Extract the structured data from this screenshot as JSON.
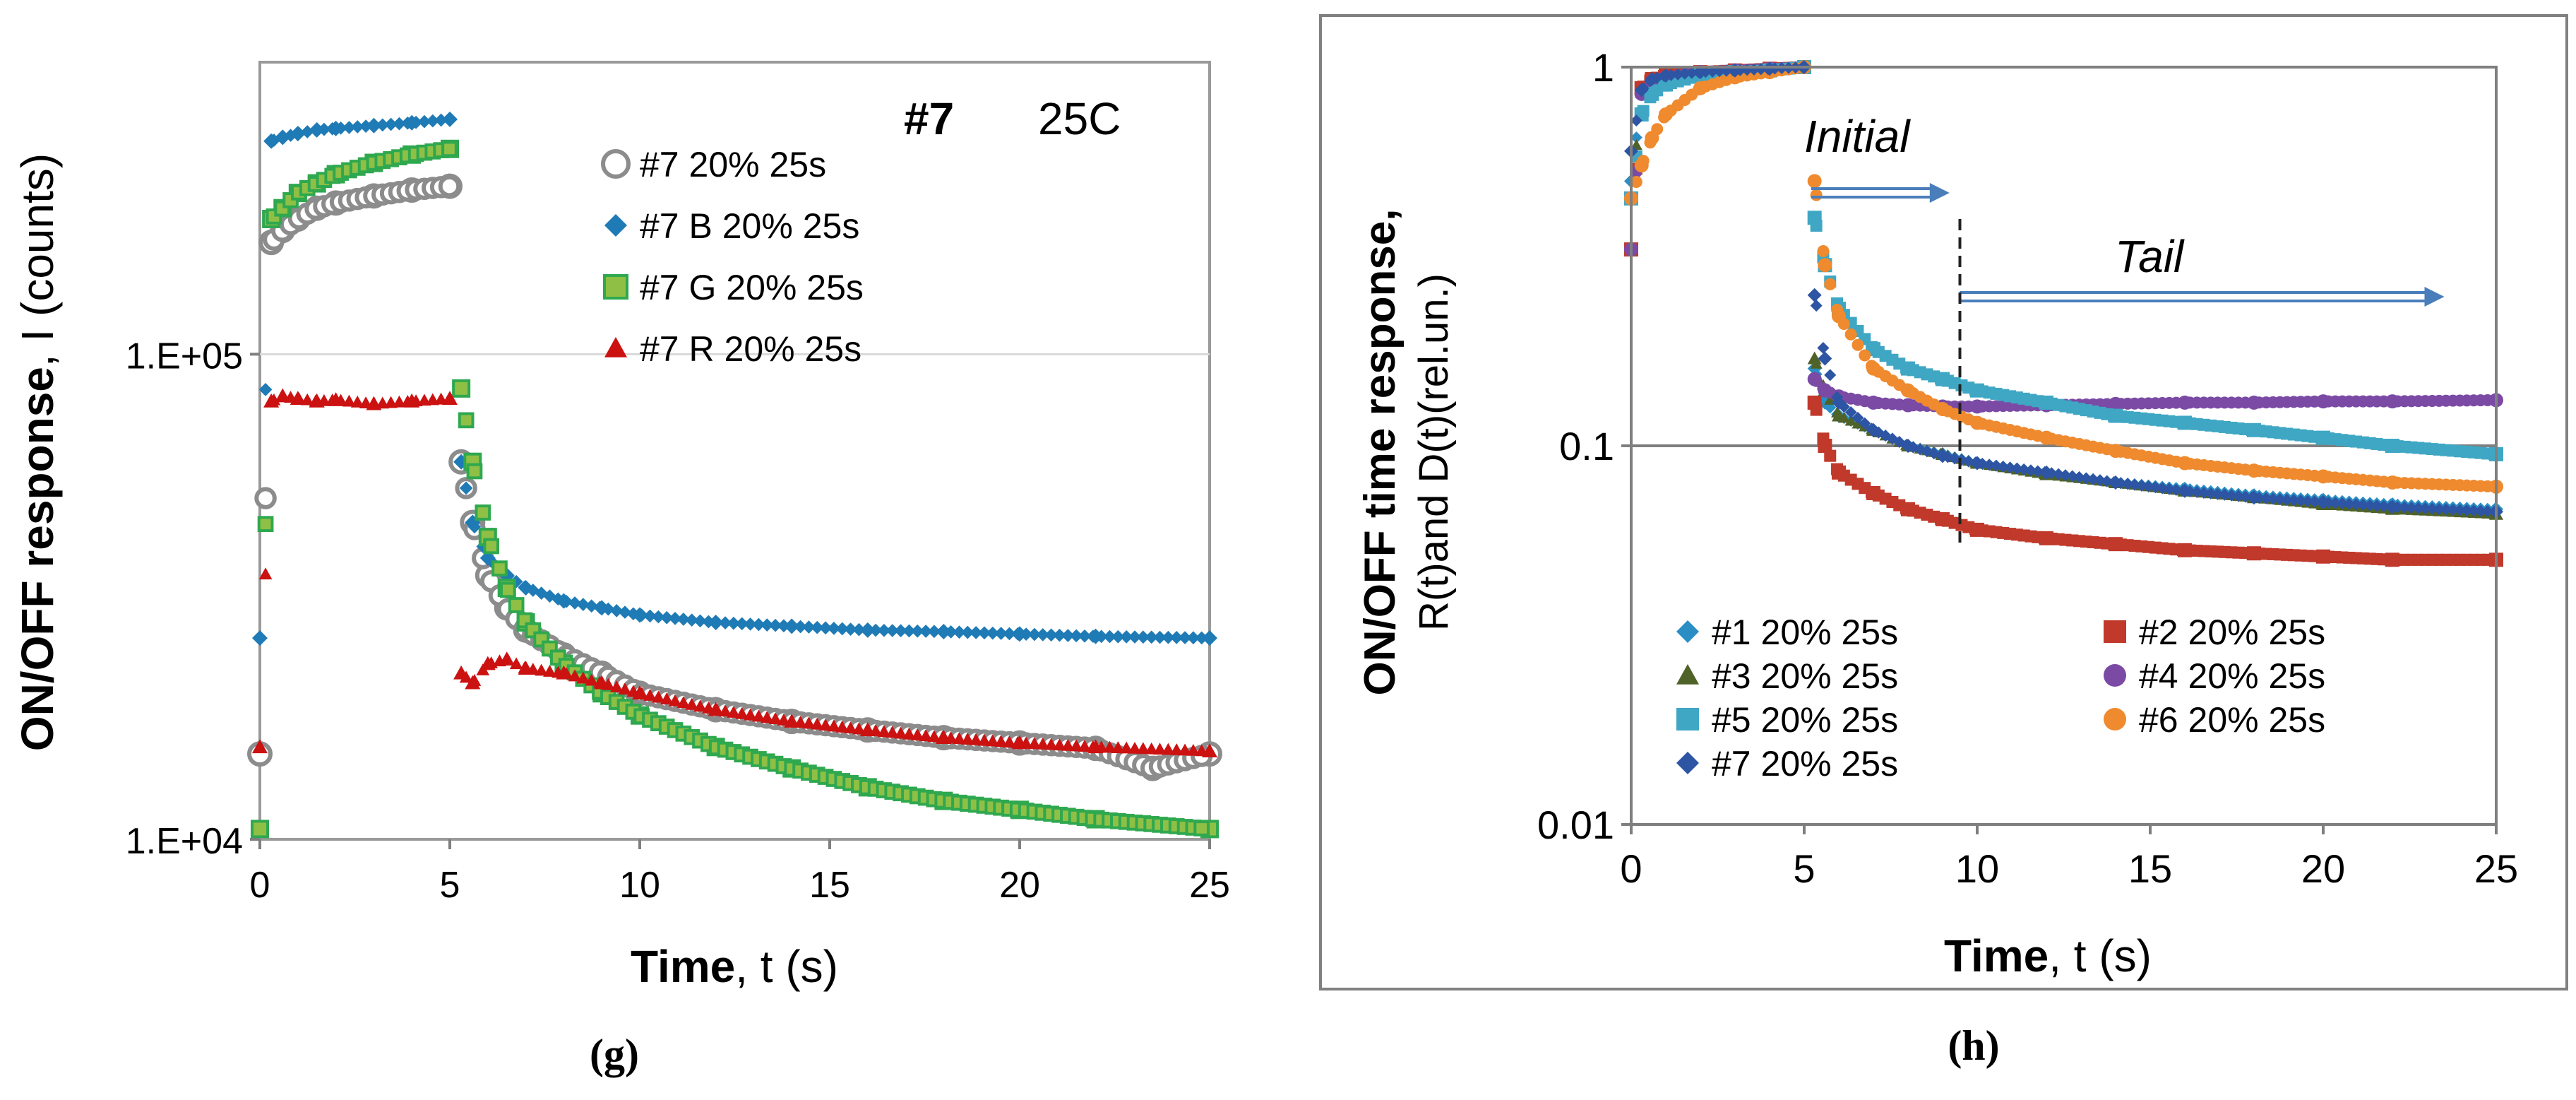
{
  "colors": {
    "gray": "#8c8c8c",
    "blue_b": "#1f7bb5",
    "green_g": "#8fc045",
    "green_edge": "#2fa84f",
    "red_r": "#cc1111",
    "s1": "#2a8ec4",
    "s2": "#c0392b",
    "s3": "#4f6228",
    "s4": "#7a4aa5",
    "s5": "#3fa7c4",
    "s6": "#ef8a2e",
    "s7": "#2d55a3",
    "arrow": "#4a7ebb",
    "gridline": "#bfbfbf",
    "axis": "#7f7f7f"
  },
  "panel_g": {
    "caption": "(g)",
    "annotation_id": "#7",
    "annotation_temp": "25C"
  },
  "panel_h": {
    "caption": "(h)",
    "label_initial": "Initial",
    "label_tail": "Tail",
    "ylabel_line1": "ON/OFF time response,",
    "ylabel_line2": "R(t)and D(t)(rel.un.)"
  },
  "chart_data": [
    {
      "type": "scatter",
      "panel": "g",
      "title": "",
      "xlabel_bold": "Time",
      "xlabel_rest": ", t (s)",
      "ylabel_bold": "ON/OFF response",
      "ylabel_rest": ", I (counts)",
      "xlim": [
        0,
        25
      ],
      "ylim": [
        10000,
        400000
      ],
      "yscale": "log",
      "xticks": [
        0,
        5,
        10,
        15,
        20,
        25
      ],
      "yticks": [
        {
          "value": 10000,
          "label": "1.E+04"
        },
        {
          "value": 100000,
          "label": "1.E+05"
        }
      ],
      "legend_position": "top-center",
      "series": [
        {
          "name": "#7 20% 25s",
          "marker": "circle-open",
          "color_key": "gray",
          "x": [
            0,
            0.3,
            0.6,
            1,
            1.5,
            2,
            3,
            4,
            5,
            5.3,
            5.6,
            6,
            6.5,
            7,
            8,
            9,
            10,
            12,
            14,
            16,
            18,
            20,
            22,
            23.5,
            25
          ],
          "y": [
            15000,
            170000,
            180000,
            190000,
            200000,
            205000,
            212000,
            218000,
            222000,
            60000,
            45000,
            35000,
            30000,
            27000,
            24000,
            22000,
            20000,
            18500,
            17500,
            16800,
            16200,
            15800,
            15400,
            14000,
            15000
          ]
        },
        {
          "name": "#7 B 20% 25s",
          "marker": "diamond",
          "color_key": "blue_b",
          "x": [
            0,
            0.3,
            0.6,
            1,
            1.5,
            2,
            3,
            4,
            5,
            5.3,
            5.6,
            6,
            6.5,
            7,
            8,
            9,
            10,
            12,
            14,
            16,
            18,
            20,
            22,
            25
          ],
          "y": [
            26000,
            275000,
            280000,
            285000,
            290000,
            292000,
            296000,
            300000,
            305000,
            60000,
            45000,
            38000,
            35000,
            33000,
            31000,
            30000,
            29000,
            28000,
            27500,
            27000,
            26800,
            26500,
            26200,
            26000
          ]
        },
        {
          "name": "#7 G 20% 25s",
          "marker": "square",
          "color_key": "green_g",
          "x": [
            0,
            0.3,
            0.6,
            1,
            1.5,
            2,
            3,
            4,
            5,
            5.3,
            5.6,
            6,
            6.5,
            7,
            8,
            9,
            10,
            12,
            14,
            16,
            18,
            20,
            22,
            25
          ],
          "y": [
            10500,
            190000,
            200000,
            215000,
            225000,
            235000,
            248000,
            258000,
            265000,
            85000,
            60000,
            42000,
            33000,
            28000,
            23000,
            20000,
            18000,
            15500,
            14000,
            12800,
            12000,
            11500,
            11000,
            10500
          ]
        },
        {
          "name": "#7 R 20% 25s",
          "marker": "triangle",
          "color_key": "red_r",
          "x": [
            0,
            0.3,
            0.6,
            1,
            1.5,
            2,
            3,
            4,
            5,
            5.3,
            5.6,
            6,
            6.5,
            7,
            8,
            9,
            10,
            12,
            14,
            16,
            18,
            20,
            22,
            25
          ],
          "y": [
            15500,
            80000,
            82000,
            81000,
            80000,
            80500,
            79000,
            80000,
            81000,
            22000,
            21000,
            23000,
            23500,
            22500,
            22000,
            21000,
            20000,
            18500,
            17500,
            16800,
            16200,
            15800,
            15500,
            15200
          ]
        }
      ]
    },
    {
      "type": "scatter",
      "panel": "h",
      "title": "",
      "xlabel_bold": "Time",
      "xlabel_rest": ", t (s)",
      "ylabel": "ON/OFF time response, R(t)and D(t)(rel.un.)",
      "xlim": [
        0,
        25
      ],
      "ylim": [
        0.01,
        1
      ],
      "yscale": "log",
      "xticks": [
        0,
        5,
        10,
        15,
        20,
        25
      ],
      "yticks": [
        {
          "value": 0.01,
          "label": "0.01"
        },
        {
          "value": 0.1,
          "label": "0.1"
        },
        {
          "value": 1,
          "label": "1"
        }
      ],
      "legend_position": "bottom",
      "annotations": [
        {
          "text": "Initial",
          "x_from": 5.2,
          "x_to": 9.2
        },
        {
          "text": "Tail",
          "x_from": 9.5,
          "x_to": 23.5
        },
        {
          "text": "divider",
          "x": 9.5
        }
      ],
      "series": [
        {
          "name": "#1 20%  25s",
          "marker": "diamond",
          "color_key": "s1",
          "x": [
            0,
            0.3,
            0.6,
            1,
            2,
            3,
            4,
            5,
            5.3,
            5.6,
            6,
            7,
            8,
            9,
            10,
            12,
            14,
            16,
            18,
            20,
            22,
            25
          ],
          "y": [
            0.5,
            0.85,
            0.92,
            0.95,
            0.97,
            0.98,
            0.99,
            1.0,
            0.16,
            0.13,
            0.12,
            0.11,
            0.1,
            0.095,
            0.09,
            0.085,
            0.08,
            0.077,
            0.074,
            0.072,
            0.07,
            0.068
          ]
        },
        {
          "name": "#2 20%  25s",
          "marker": "square",
          "color_key": "s2",
          "x": [
            0,
            0.3,
            0.6,
            1,
            2,
            3,
            4,
            5,
            5.3,
            5.6,
            6,
            7,
            8,
            9,
            10,
            12,
            14,
            16,
            18,
            20,
            22,
            25
          ],
          "y": [
            0.33,
            0.88,
            0.93,
            0.95,
            0.97,
            0.98,
            0.99,
            1.0,
            0.13,
            0.1,
            0.085,
            0.075,
            0.068,
            0.064,
            0.06,
            0.057,
            0.055,
            0.053,
            0.052,
            0.051,
            0.05,
            0.05
          ]
        },
        {
          "name": "#3 20% 25s",
          "marker": "triangle",
          "color_key": "s3",
          "x": [
            0,
            0.3,
            0.6,
            1,
            2,
            3,
            4,
            5,
            5.3,
            5.6,
            6,
            7,
            8,
            9,
            10,
            12,
            14,
            16,
            18,
            20,
            22,
            25
          ],
          "y": [
            0.45,
            0.86,
            0.92,
            0.95,
            0.97,
            0.98,
            0.99,
            1.0,
            0.17,
            0.14,
            0.12,
            0.11,
            0.1,
            0.095,
            0.09,
            0.084,
            0.08,
            0.076,
            0.073,
            0.07,
            0.068,
            0.066
          ]
        },
        {
          "name": "#4 20% 25s",
          "marker": "circle",
          "color_key": "s4",
          "x": [
            0,
            0.3,
            0.6,
            1,
            2,
            3,
            4,
            5,
            5.3,
            5.6,
            6,
            7,
            8,
            9,
            10,
            12,
            14,
            16,
            18,
            20,
            22,
            25
          ],
          "y": [
            0.33,
            0.85,
            0.91,
            0.94,
            0.97,
            0.98,
            0.99,
            1.0,
            0.15,
            0.14,
            0.135,
            0.13,
            0.128,
            0.127,
            0.127,
            0.128,
            0.129,
            0.13,
            0.13,
            0.131,
            0.131,
            0.132
          ]
        },
        {
          "name": "#5 20% 25s",
          "marker": "square",
          "color_key": "s5",
          "x": [
            0,
            0.3,
            0.6,
            1,
            2,
            3,
            4,
            5,
            5.3,
            5.6,
            6,
            7,
            8,
            9,
            10,
            12,
            14,
            16,
            18,
            20,
            22,
            25
          ],
          "y": [
            0.45,
            0.75,
            0.85,
            0.9,
            0.95,
            0.97,
            0.98,
            1.0,
            0.4,
            0.3,
            0.23,
            0.18,
            0.16,
            0.15,
            0.14,
            0.13,
            0.12,
            0.115,
            0.11,
            0.105,
            0.1,
            0.095
          ]
        },
        {
          "name": "#6 20% 25s",
          "marker": "circle",
          "color_key": "s6",
          "x": [
            0,
            0.3,
            0.6,
            1,
            2,
            3,
            4,
            5,
            5.3,
            5.6,
            6,
            7,
            8,
            9,
            10,
            12,
            14,
            16,
            18,
            20,
            22,
            25
          ],
          "y": [
            0.45,
            0.55,
            0.65,
            0.75,
            0.88,
            0.94,
            0.97,
            1.0,
            0.5,
            0.3,
            0.22,
            0.16,
            0.14,
            0.125,
            0.115,
            0.105,
            0.097,
            0.09,
            0.086,
            0.083,
            0.08,
            0.078
          ]
        },
        {
          "name": "#7 20% 25s",
          "marker": "diamond",
          "color_key": "s7",
          "x": [
            0,
            0.3,
            0.6,
            1,
            2,
            3,
            4,
            5,
            5.3,
            5.6,
            6,
            7,
            8,
            9,
            10,
            12,
            14,
            16,
            18,
            20,
            22,
            25
          ],
          "y": [
            0.6,
            0.87,
            0.93,
            0.95,
            0.97,
            0.98,
            0.99,
            1.0,
            0.25,
            0.17,
            0.13,
            0.11,
            0.1,
            0.094,
            0.09,
            0.085,
            0.08,
            0.076,
            0.073,
            0.071,
            0.069,
            0.067
          ]
        }
      ]
    }
  ]
}
